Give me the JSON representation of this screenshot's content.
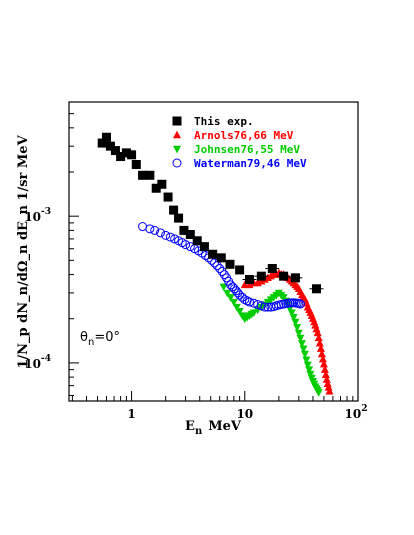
{
  "chart_data": {
    "type": "scatter",
    "title": "",
    "xlabel": "E",
    "xlabel_sub": "n",
    "xlabel_unit": "MeV",
    "ylabel": "1/N_p dN_n/dΩ_n dE_n 1/sr MeV",
    "x_scale": "log",
    "y_scale": "log",
    "xlim": [
      0.28,
      100
    ],
    "ylim": [
      5.5e-05,
      0.006
    ],
    "x_tick_labels": [
      {
        "value": 1,
        "label": "1"
      },
      {
        "value": 10,
        "label": "10"
      },
      {
        "value": 100,
        "label": "10",
        "sup": "2"
      }
    ],
    "y_tick_labels": [
      {
        "value": 0.001,
        "label": "10",
        "sup": "-3"
      },
      {
        "value": 0.0001,
        "label": "10",
        "sup": "-4"
      }
    ],
    "annotation": {
      "symbol": "θ",
      "sub": "n",
      "text": "=0°"
    },
    "legend_position": "top-right",
    "grid": false,
    "series": [
      {
        "name": "This exp.",
        "color": "#000000",
        "marker": "square-filled",
        "x": [
          0.55,
          0.6,
          0.65,
          0.72,
          0.8,
          0.9,
          1.0,
          1.1,
          1.25,
          1.45,
          1.65,
          1.85,
          2.1,
          2.35,
          2.6,
          2.9,
          3.3,
          3.8,
          4.4,
          5.2,
          6.2,
          7.4,
          9.0,
          11.0,
          14.0,
          17.5,
          22.0,
          28.0,
          43.0
        ],
        "y": [
          0.00315,
          0.00345,
          0.003,
          0.0028,
          0.00255,
          0.0027,
          0.00262,
          0.00225,
          0.0019,
          0.0019,
          0.00155,
          0.00165,
          0.00135,
          0.0011,
          0.00097,
          0.0008,
          0.00075,
          0.00068,
          0.00062,
          0.00055,
          0.00052,
          0.00047,
          0.00043,
          0.00037,
          0.00039,
          0.00044,
          0.00039,
          0.00038,
          0.00032
        ]
      },
      {
        "name": "Arnols76,66 MeV",
        "color": "#ff0000",
        "marker": "triangle-up-filled",
        "x": [
          10,
          11,
          12,
          13,
          14,
          15,
          16,
          17,
          18,
          19,
          20,
          21,
          22,
          23,
          24,
          25,
          26,
          27,
          28,
          29,
          30,
          31,
          32,
          33,
          34,
          35,
          36,
          37,
          38,
          39,
          40,
          41,
          42,
          43,
          44,
          45,
          46,
          47,
          48,
          49,
          50,
          51,
          52,
          53,
          54,
          55,
          56
        ],
        "y": [
          0.00034,
          0.00034,
          0.00035,
          0.00035,
          0.00036,
          0.00037,
          0.00038,
          0.00039,
          0.0004,
          0.0004,
          0.00041,
          0.0004,
          0.0004,
          0.00039,
          0.00038,
          0.00037,
          0.00036,
          0.00035,
          0.00034,
          0.00033,
          0.00032,
          0.000305,
          0.00029,
          0.00028,
          0.00027,
          0.000255,
          0.00024,
          0.00023,
          0.00022,
          0.00021,
          0.0002,
          0.00019,
          0.00018,
          0.00017,
          0.00016,
          0.000148,
          0.000136,
          0.000125,
          0.000115,
          0.000106,
          9.8e-05,
          9e-05,
          8.3e-05,
          7.7e-05,
          7.2e-05,
          6.8e-05,
          6.4e-05
        ]
      },
      {
        "name": "Johnsen76,55 MeV",
        "color": "#00cc00",
        "marker": "triangle-down-filled",
        "x": [
          6.5,
          7,
          7.5,
          8,
          8.5,
          9,
          9.5,
          10,
          10.5,
          11,
          11.5,
          12,
          13,
          14,
          15,
          16,
          17,
          18,
          19,
          20,
          21,
          22,
          23,
          24,
          25,
          26,
          27,
          28,
          29,
          30,
          31,
          32,
          33,
          34,
          35,
          36,
          37,
          38,
          39,
          40,
          41,
          42,
          43,
          44,
          45
        ],
        "y": [
          0.00033,
          0.0003,
          0.00028,
          0.00026,
          0.00024,
          0.000225,
          0.00021,
          0.0002,
          0.000205,
          0.00021,
          0.000215,
          0.00022,
          0.00023,
          0.00024,
          0.00025,
          0.00026,
          0.00027,
          0.00028,
          0.00029,
          0.0003,
          0.00029,
          0.00028,
          0.000265,
          0.00025,
          0.000235,
          0.00022,
          0.000205,
          0.00019,
          0.000175,
          0.00016,
          0.000148,
          0.000136,
          0.000125,
          0.000115,
          0.000105,
          9.7e-05,
          9e-05,
          8.4e-05,
          7.9e-05,
          7.5e-05,
          7.2e-05,
          6.9e-05,
          6.7e-05,
          6.5e-05,
          6.3e-05
        ]
      },
      {
        "name": "Waterman79,46 MeV",
        "color": "#0000ff",
        "marker": "circle-open",
        "x": [
          1.25,
          1.45,
          1.6,
          1.8,
          2.0,
          2.2,
          2.4,
          2.6,
          2.8,
          3.0,
          3.3,
          3.6,
          3.9,
          4.2,
          4.5,
          4.8,
          5.1,
          5.4,
          5.7,
          6.0,
          6.3,
          6.6,
          6.9,
          7.2,
          7.5,
          7.8,
          8.1,
          8.4,
          8.7,
          9.0,
          9.5,
          10,
          10.5,
          11,
          12,
          13,
          14,
          15,
          16,
          17,
          18,
          19,
          20,
          21,
          22,
          23,
          24,
          25,
          26,
          27,
          28,
          29,
          30,
          31
        ],
        "y": [
          0.00085,
          0.00082,
          0.0008,
          0.00077,
          0.00074,
          0.00072,
          0.0007,
          0.00068,
          0.00066,
          0.00064,
          0.00062,
          0.0006,
          0.00058,
          0.00056,
          0.00054,
          0.00052,
          0.0005,
          0.00048,
          0.00046,
          0.00044,
          0.00042,
          0.0004,
          0.00038,
          0.00036,
          0.00034,
          0.00033,
          0.00032,
          0.00031,
          0.0003,
          0.00029,
          0.00028,
          0.00027,
          0.000265,
          0.00026,
          0.000255,
          0.00025,
          0.000245,
          0.00024,
          0.00024,
          0.00024,
          0.000242,
          0.000245,
          0.000248,
          0.00025,
          0.000252,
          0.000254,
          0.000255,
          0.000256,
          0.000257,
          0.000257,
          0.000256,
          0.000255,
          0.000254,
          0.000252
        ]
      }
    ]
  }
}
